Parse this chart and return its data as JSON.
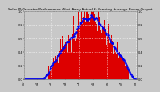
{
  "title": "Solar PV/Inverter Performance West Array Actual & Running Average Power Output",
  "title_fontsize": 3.2,
  "bg_color": "#c8c8c8",
  "plot_bg_color": "#c8c8c8",
  "bar_color": "#dd0000",
  "bar_edge_color": "#dd0000",
  "avg_color": "#0000ee",
  "grid_color": "#ffffff",
  "n_bars": 144,
  "avg_line_style": "dotted",
  "ylim": [
    0,
    1.0
  ],
  "tick_fontsize": 2.5,
  "right_yticks": [
    0.0,
    0.2,
    0.4,
    0.6,
    0.8,
    1.0
  ],
  "left_yticks": [
    0.0,
    0.2,
    0.4,
    0.6,
    0.8,
    1.0
  ]
}
